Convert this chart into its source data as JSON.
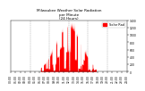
{
  "title": "Milwaukee Weather Solar Radiation per Minute (24 Hours)",
  "bar_color": "#ff0000",
  "background_color": "#ffffff",
  "ylim": [
    0,
    1400
  ],
  "yticks": [
    0,
    200,
    400,
    600,
    800,
    1000,
    1200,
    1400
  ],
  "num_points": 1440,
  "legend_label": "Solar Rad",
  "legend_color": "#ff0000",
  "rise": 370,
  "set_": 1060,
  "peak_val": 1200,
  "grid_positions": [
    240,
    480,
    720,
    960,
    1200
  ],
  "xtick_step": 60,
  "title_fontsize": 3.0,
  "tick_fontsize": 2.2,
  "legend_fontsize": 2.5
}
